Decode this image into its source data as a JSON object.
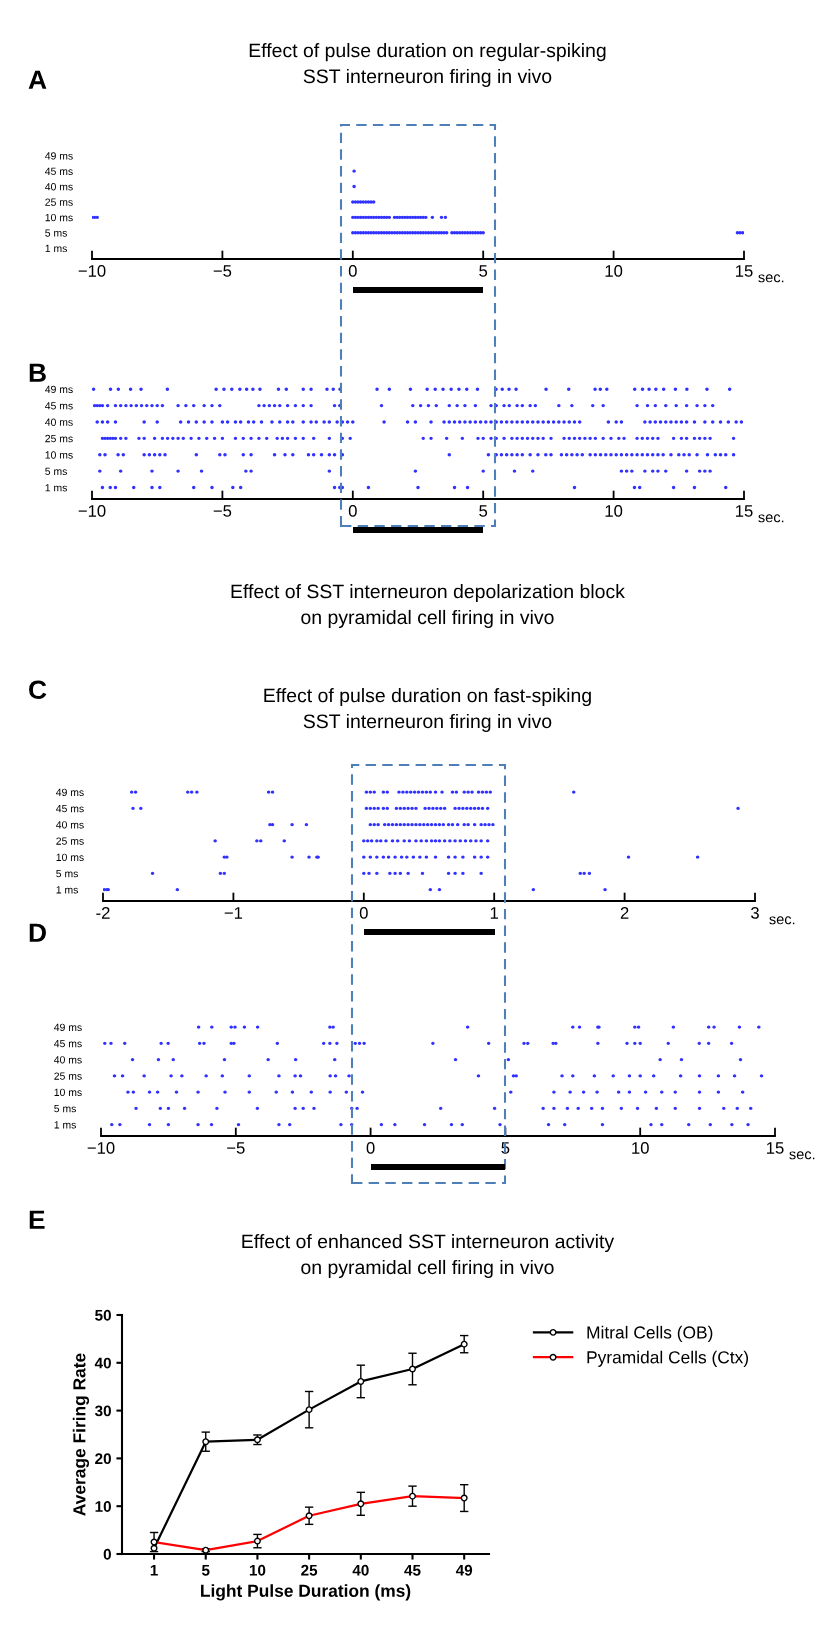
{
  "chart_data": [
    {
      "type": "scatter",
      "orientation": "horizontal",
      "title": "Effect of pulse duration on regular-spiking\nSST interneuron firing in vivo",
      "xlabel": "sec.",
      "annotations": [
        "A"
      ],
      "marker": "circle",
      "xlim": [
        -10,
        15
      ],
      "xticks": [
        {
          "value": -10,
          "label": "−10"
        },
        {
          "value": -5,
          "label": "−5"
        },
        0,
        5,
        10,
        15
      ],
      "categories": [
        "49 ms",
        "45 ms",
        "40 ms",
        "25 ms",
        "10 ms",
        "5 ms",
        "1 ms"
      ],
      "series": [
        {
          "color": "#3030ff",
          "x": [
            "45 ms"
          ],
          "values": [
            0.05
          ]
        },
        {
          "color": "#3030ff",
          "x": [
            "40 ms"
          ],
          "values": [
            0.05
          ]
        },
        {
          "color": "#3030ff",
          "x": [
            "25 ms",
            "25 ms",
            "25 ms",
            "25 ms",
            "25 ms",
            "25 ms",
            "25 ms",
            "25 ms",
            "25 ms"
          ],
          "values": [
            0,
            0.1,
            0.2,
            0.3,
            0.4,
            0.5,
            0.6,
            0.7,
            0.8
          ]
        },
        {
          "color": "#3030ff",
          "x": [
            "10 ms",
            "10 ms",
            "10 ms",
            "10 ms",
            "10 ms",
            "10 ms",
            "10 ms",
            "10 ms",
            "10 ms",
            "10 ms",
            "10 ms",
            "10 ms",
            "10 ms",
            "10 ms",
            "10 ms",
            "10 ms",
            "10 ms",
            "10 ms",
            "10 ms",
            "10 ms",
            "10 ms",
            "10 ms",
            "10 ms",
            "10 ms",
            "10 ms",
            "10 ms",
            "10 ms",
            "10 ms",
            "10 ms",
            "10 ms",
            "10 ms",
            "10 ms",
            "10 ms",
            "10 ms"
          ],
          "values": [
            -10,
            -9.9,
            -9.8,
            0,
            0.1,
            0.2,
            0.3,
            0.4,
            0.5,
            0.6,
            0.7,
            0.8,
            0.9,
            1.0,
            1.1,
            1.2,
            1.3,
            1.4,
            1.6,
            1.7,
            1.8,
            1.9,
            2.0,
            2.1,
            2.2,
            2.3,
            2.4,
            2.5,
            2.6,
            2.7,
            2.8,
            3.05,
            3.4,
            3.55
          ]
        },
        {
          "color": "#3030ff",
          "x": [
            "5 ms",
            "5 ms",
            "5 ms",
            "5 ms",
            "5 ms",
            "5 ms",
            "5 ms",
            "5 ms",
            "5 ms",
            "5 ms",
            "5 ms",
            "5 ms",
            "5 ms",
            "5 ms",
            "5 ms",
            "5 ms",
            "5 ms",
            "5 ms",
            "5 ms",
            "5 ms",
            "5 ms",
            "5 ms",
            "5 ms",
            "5 ms",
            "5 ms",
            "5 ms",
            "5 ms",
            "5 ms",
            "5 ms",
            "5 ms",
            "5 ms",
            "5 ms",
            "5 ms",
            "5 ms",
            "5 ms",
            "5 ms",
            "5 ms",
            "5 ms",
            "5 ms",
            "5 ms",
            "5 ms",
            "5 ms",
            "5 ms",
            "5 ms",
            "5 ms",
            "5 ms",
            "5 ms",
            "5 ms",
            "5 ms",
            "5 ms",
            "5 ms",
            "5 ms",
            "5 ms"
          ],
          "values": [
            0,
            0.1,
            0.2,
            0.3,
            0.4,
            0.5,
            0.6,
            0.7,
            0.8,
            0.9,
            1.0,
            1.1,
            1.2,
            1.3,
            1.4,
            1.5,
            1.6,
            1.7,
            1.8,
            1.9,
            2.0,
            2.1,
            2.2,
            2.3,
            2.4,
            2.5,
            2.6,
            2.7,
            2.8,
            2.9,
            3.0,
            3.1,
            3.2,
            3.3,
            3.4,
            3.5,
            3.6,
            3.8,
            3.9,
            4.0,
            4.1,
            4.2,
            4.3,
            4.4,
            4.5,
            4.6,
            4.7,
            4.8,
            4.9,
            5.0,
            14.75,
            14.85,
            14.95
          ]
        }
      ]
    },
    {
      "type": "scatter",
      "orientation": "horizontal",
      "xlabel": "sec.",
      "annotations": [
        "B",
        "Effect of SST interneuron depolarization block\non pyramidal cell firing in vivo"
      ],
      "marker": "circle",
      "xlim": [
        -10,
        15
      ],
      "xticks": [
        {
          "value": -10,
          "label": "−10"
        },
        {
          "value": -5,
          "label": "−5"
        },
        0,
        5,
        10,
        15
      ],
      "categories": [
        "49 ms",
        "45 ms",
        "40 ms",
        "25 ms",
        "10 ms",
        "5 ms",
        "1 ms"
      ],
      "series": [
        {
          "color": "#3030ff",
          "x": [
            "49 ms",
            "49 ms",
            "49 ms",
            "49 ms",
            "49 ms",
            "49 ms",
            "49 ms",
            "49 ms",
            "49 ms",
            "49 ms",
            "49 ms",
            "49 ms",
            "49 ms",
            "49 ms",
            "49 ms",
            "49 ms",
            "49 ms",
            "49 ms",
            "49 ms",
            "49 ms",
            "49 ms",
            "49 ms",
            "49 ms",
            "49 ms",
            "49 ms",
            "49 ms",
            "49 ms",
            "49 ms",
            "49 ms",
            "49 ms",
            "49 ms",
            "49 ms",
            "49 ms",
            "49 ms",
            "49 ms",
            "49 ms",
            "49 ms",
            "49 ms",
            "49 ms",
            "49 ms",
            "49 ms",
            "49 ms",
            "49 ms",
            "49 ms",
            "49 ms",
            "49 ms",
            "49 ms",
            "49 ms"
          ],
          "values": [
            -9.94,
            -9.29,
            -8.99,
            -8.52,
            -8.12,
            -7.11,
            -5.24,
            -4.94,
            -4.64,
            -4.33,
            -4.07,
            -3.83,
            -3.56,
            -2.85,
            -2.55,
            -1.9,
            -1.6,
            -0.99,
            -0.75,
            -0.49,
            0.93,
            1.4,
            2.21,
            2.85,
            3.16,
            3.46,
            3.77,
            4.07,
            4.37,
            4.78,
            5.49,
            5.73,
            5.99,
            6.26,
            7.41,
            8.28,
            9.29,
            9.49,
            9.74,
            10.81,
            11.11,
            11.36,
            11.62,
            11.92,
            12.37,
            12.81,
            13.58,
            14.45
          ]
        },
        {
          "color": "#3030ff",
          "x": [
            "45 ms",
            "45 ms",
            "45 ms",
            "45 ms",
            "45 ms",
            "45 ms",
            "45 ms",
            "45 ms",
            "45 ms",
            "45 ms",
            "45 ms",
            "45 ms",
            "45 ms",
            "45 ms",
            "45 ms",
            "45 ms",
            "45 ms",
            "45 ms",
            "45 ms",
            "45 ms",
            "45 ms",
            "45 ms",
            "45 ms",
            "45 ms",
            "45 ms",
            "45 ms",
            "45 ms",
            "45 ms",
            "45 ms",
            "45 ms",
            "45 ms",
            "45 ms",
            "45 ms",
            "45 ms",
            "45 ms",
            "45 ms",
            "45 ms",
            "45 ms",
            "45 ms",
            "45 ms",
            "45 ms",
            "45 ms",
            "45 ms",
            "45 ms",
            "45 ms",
            "45 ms",
            "45 ms",
            "45 ms",
            "45 ms",
            "45 ms",
            "45 ms",
            "45 ms",
            "45 ms",
            "45 ms",
            "45 ms",
            "45 ms",
            "45 ms",
            "45 ms",
            "45 ms",
            "45 ms",
            "45 ms",
            "45 ms"
          ],
          "values": [
            -9.9,
            -9.8,
            -9.7,
            -9.6,
            -9.4,
            -9.1,
            -8.9,
            -8.7,
            -8.5,
            -8.3,
            -8.1,
            -7.9,
            -7.7,
            -7.5,
            -7.3,
            -6.7,
            -6.4,
            -6.1,
            -5.7,
            -5.4,
            -5.1,
            -3.6,
            -3.4,
            -3.2,
            -3.0,
            -2.8,
            -2.5,
            -2.2,
            -1.9,
            -1.6,
            -0.7,
            -0.5,
            1.1,
            2.3,
            2.6,
            2.9,
            3.2,
            3.7,
            4.0,
            4.3,
            4.7,
            5.3,
            5.5,
            5.8,
            6.0,
            6.3,
            6.5,
            6.8,
            7.0,
            7.9,
            8.4,
            9.2,
            9.6,
            10.9,
            11.3,
            11.6,
            12.0,
            12.4,
            12.8,
            13.2,
            13.5,
            13.8
          ]
        },
        {
          "color": "#3030ff",
          "x": [
            "40 ms",
            "40 ms",
            "40 ms",
            "40 ms",
            "40 ms",
            "40 ms",
            "40 ms",
            "40 ms",
            "40 ms",
            "40 ms",
            "40 ms",
            "40 ms",
            "40 ms",
            "40 ms",
            "40 ms",
            "40 ms",
            "40 ms",
            "40 ms",
            "40 ms",
            "40 ms",
            "40 ms",
            "40 ms",
            "40 ms",
            "40 ms",
            "40 ms",
            "40 ms",
            "40 ms",
            "40 ms",
            "40 ms",
            "40 ms",
            "40 ms",
            "40 ms",
            "40 ms",
            "40 ms",
            "40 ms",
            "40 ms",
            "40 ms",
            "40 ms",
            "40 ms",
            "40 ms",
            "40 ms",
            "40 ms",
            "40 ms",
            "40 ms",
            "40 ms",
            "40 ms",
            "40 ms",
            "40 ms",
            "40 ms",
            "40 ms",
            "40 ms",
            "40 ms",
            "40 ms",
            "40 ms",
            "40 ms",
            "40 ms",
            "40 ms",
            "40 ms",
            "40 ms",
            "40 ms",
            "40 ms",
            "40 ms",
            "40 ms",
            "40 ms",
            "40 ms",
            "40 ms",
            "40 ms",
            "40 ms",
            "40 ms",
            "40 ms",
            "40 ms",
            "40 ms",
            "40 ms",
            "40 ms",
            "40 ms",
            "40 ms",
            "40 ms",
            "40 ms",
            "40 ms",
            "40 ms",
            "40 ms"
          ],
          "values": [
            -9.8,
            -9.6,
            -9.4,
            -9.1,
            -8.0,
            -7.5,
            -6.6,
            -6.3,
            -6.0,
            -5.7,
            -5.4,
            -5.0,
            -4.8,
            -4.5,
            -4.3,
            -4.0,
            -3.8,
            -3.5,
            -3.1,
            -2.8,
            -2.5,
            -2.3,
            -1.9,
            -1.6,
            -1.4,
            -1.1,
            -0.9,
            -0.6,
            -0.4,
            -0.2,
            0,
            1.2,
            2.1,
            2.4,
            3.0,
            3.5,
            3.7,
            3.9,
            4.1,
            4.3,
            4.5,
            4.7,
            4.9,
            5.1,
            5.3,
            5.5,
            5.7,
            5.9,
            6.1,
            6.3,
            6.5,
            6.7,
            6.9,
            7.1,
            7.3,
            7.5,
            7.7,
            7.9,
            8.1,
            8.3,
            8.5,
            8.7,
            9.8,
            10.1,
            10.3,
            11.2,
            11.4,
            11.6,
            11.8,
            12.0,
            12.2,
            12.4,
            12.6,
            12.8,
            13.1,
            13.5,
            13.8,
            14.1,
            14.4,
            14.7,
            14.9
          ]
        },
        {
          "color": "#3030ff",
          "x": [
            "25 ms",
            "25 ms",
            "25 ms",
            "25 ms",
            "25 ms",
            "25 ms",
            "25 ms",
            "25 ms",
            "25 ms",
            "25 ms",
            "25 ms",
            "25 ms",
            "25 ms",
            "25 ms",
            "25 ms",
            "25 ms",
            "25 ms",
            "25 ms",
            "25 ms",
            "25 ms",
            "25 ms",
            "25 ms",
            "25 ms",
            "25 ms",
            "25 ms",
            "25 ms",
            "25 ms",
            "25 ms",
            "25 ms",
            "25 ms",
            "25 ms",
            "25 ms",
            "25 ms",
            "25 ms",
            "25 ms",
            "25 ms",
            "25 ms",
            "25 ms",
            "25 ms",
            "25 ms",
            "25 ms",
            "25 ms",
            "25 ms",
            "25 ms",
            "25 ms",
            "25 ms",
            "25 ms",
            "25 ms",
            "25 ms",
            "25 ms",
            "25 ms",
            "25 ms",
            "25 ms",
            "25 ms",
            "25 ms",
            "25 ms",
            "25 ms",
            "25 ms",
            "25 ms",
            "25 ms",
            "25 ms",
            "25 ms",
            "25 ms",
            "25 ms",
            "25 ms",
            "25 ms",
            "25 ms",
            "25 ms",
            "25 ms",
            "25 ms",
            "25 ms",
            "25 ms",
            "25 ms",
            "25 ms",
            "25 ms",
            "25 ms"
          ],
          "values": [
            -9.6,
            -9.5,
            -9.4,
            -9.3,
            -9.2,
            -9.1,
            -8.9,
            -8.7,
            -8.2,
            -8.0,
            -7.6,
            -7.3,
            -7.1,
            -6.9,
            -6.7,
            -6.5,
            -6.2,
            -5.9,
            -5.6,
            -5.3,
            -5.0,
            -4.5,
            -4.2,
            -3.9,
            -3.6,
            -3.3,
            -2.9,
            -2.7,
            -2.5,
            -2.2,
            -1.9,
            -1.5,
            -0.9,
            -0.4,
            -0.1,
            2.7,
            3.0,
            3.6,
            4.2,
            4.8,
            5.0,
            5.3,
            5.5,
            5.8,
            6.1,
            6.3,
            6.5,
            6.7,
            6.9,
            7.1,
            7.3,
            7.6,
            8.1,
            8.3,
            8.5,
            8.7,
            8.9,
            9.1,
            9.3,
            9.6,
            9.9,
            10.2,
            10.4,
            10.9,
            11.1,
            11.3,
            11.5,
            11.7,
            12.3,
            12.6,
            12.8,
            13.1,
            13.3,
            13.5,
            13.7,
            14.6
          ]
        },
        {
          "color": "#3030ff",
          "x": [
            "10 ms",
            "10 ms",
            "10 ms",
            "10 ms",
            "10 ms",
            "10 ms",
            "10 ms",
            "10 ms",
            "10 ms",
            "10 ms",
            "10 ms",
            "10 ms",
            "10 ms",
            "10 ms",
            "10 ms",
            "10 ms",
            "10 ms",
            "10 ms",
            "10 ms",
            "10 ms",
            "10 ms",
            "10 ms",
            "10 ms",
            "10 ms",
            "10 ms",
            "10 ms",
            "10 ms",
            "10 ms",
            "10 ms",
            "10 ms",
            "10 ms",
            "10 ms",
            "10 ms",
            "10 ms",
            "10 ms",
            "10 ms",
            "10 ms",
            "10 ms",
            "10 ms",
            "10 ms",
            "10 ms",
            "10 ms",
            "10 ms",
            "10 ms",
            "10 ms",
            "10 ms",
            "10 ms",
            "10 ms",
            "10 ms",
            "10 ms",
            "10 ms",
            "10 ms",
            "10 ms",
            "10 ms",
            "10 ms",
            "10 ms",
            "10 ms",
            "10 ms",
            "10 ms",
            "10 ms",
            "10 ms",
            "10 ms",
            "10 ms",
            "10 ms",
            "10 ms"
          ],
          "values": [
            -9.7,
            -9.5,
            -9.0,
            -8.8,
            -8.0,
            -7.8,
            -7.6,
            -7.4,
            -7.2,
            -6.0,
            -5.1,
            -4.9,
            -4.2,
            -3.9,
            -3.0,
            -2.6,
            -2.3,
            -1.7,
            -1.5,
            -1.2,
            -0.9,
            -0.7,
            -0.4,
            3.7,
            5.2,
            5.5,
            5.7,
            5.9,
            6.1,
            6.3,
            6.5,
            6.8,
            7.1,
            7.4,
            7.6,
            8.0,
            8.2,
            8.4,
            8.6,
            8.8,
            9.1,
            9.3,
            9.5,
            9.7,
            9.9,
            10.1,
            10.3,
            10.5,
            10.7,
            10.9,
            11.1,
            11.3,
            11.5,
            11.7,
            11.9,
            12.2,
            12.5,
            12.7,
            12.9,
            13.2,
            13.6,
            13.9,
            14.1,
            14.3,
            14.6
          ]
        },
        {
          "color": "#3030ff",
          "x": [
            "5 ms",
            "5 ms",
            "5 ms",
            "5 ms",
            "5 ms",
            "5 ms",
            "5 ms",
            "5 ms",
            "5 ms",
            "5 ms",
            "5 ms",
            "5 ms",
            "5 ms",
            "5 ms",
            "5 ms",
            "5 ms",
            "5 ms",
            "5 ms",
            "5 ms",
            "5 ms",
            "5 ms",
            "5 ms",
            "5 ms"
          ],
          "values": [
            -9.7,
            -8.9,
            -7.7,
            -6.7,
            -5.8,
            -4.1,
            -3.9,
            -0.9,
            2.4,
            5.0,
            6.2,
            6.9,
            10.3,
            10.5,
            10.7,
            11.2,
            11.5,
            11.7,
            12.0,
            12.8,
            13.3,
            13.5,
            13.7
          ]
        },
        {
          "color": "#3030ff",
          "x": [
            "1 ms",
            "1 ms",
            "1 ms",
            "1 ms",
            "1 ms",
            "1 ms",
            "1 ms",
            "1 ms",
            "1 ms",
            "1 ms",
            "1 ms",
            "1 ms",
            "1 ms",
            "1 ms",
            "1 ms",
            "1 ms",
            "1 ms",
            "1 ms",
            "1 ms",
            "1 ms",
            "1 ms",
            "1 ms",
            "1 ms"
          ],
          "values": [
            -9.6,
            -9.3,
            -9.1,
            -8.4,
            -7.7,
            -7.4,
            -6.1,
            -5.4,
            -4.6,
            -4.3,
            -0.7,
            -0.5,
            -0.4,
            0.6,
            2.5,
            3.9,
            4.4,
            8.5,
            10.8,
            11.0,
            12.3,
            13.1,
            14.3
          ]
        }
      ]
    },
    {
      "type": "scatter",
      "orientation": "horizontal",
      "title": "Effect of pulse duration on fast-spiking\nSST interneuron firing in vivo",
      "xlabel": "sec.",
      "annotations": [
        "C"
      ],
      "marker": "circle",
      "xlim": [
        -2,
        3
      ],
      "xticks": [
        {
          "value": -2,
          "label": "-2"
        },
        {
          "value": -1,
          "label": "−1"
        },
        0,
        1,
        2,
        3
      ],
      "categories": [
        "49 ms",
        "45 ms",
        "40 ms",
        "25 ms",
        "10 ms",
        "5 ms",
        "1 ms"
      ],
      "series": [
        {
          "color": "#3030ff",
          "x": [
            "49 ms",
            "49 ms",
            "49 ms",
            "49 ms",
            "49 ms",
            "49 ms",
            "49 ms",
            "49 ms",
            "49 ms",
            "49 ms",
            "49 ms",
            "49 ms",
            "49 ms",
            "49 ms",
            "49 ms",
            "49 ms",
            "49 ms",
            "49 ms",
            "49 ms",
            "49 ms",
            "49 ms",
            "49 ms",
            "49 ms",
            "49 ms",
            "49 ms",
            "49 ms",
            "49 ms",
            "49 ms",
            "49 ms",
            "49 ms",
            "49 ms",
            "49 ms",
            "49 ms"
          ],
          "values": [
            -1.78,
            -1.75,
            -1.35,
            -1.32,
            -1.28,
            -0.73,
            -0.7,
            0.02,
            0.05,
            0.08,
            0.15,
            0.18,
            0.27,
            0.3,
            0.33,
            0.36,
            0.39,
            0.42,
            0.45,
            0.48,
            0.51,
            0.55,
            0.6,
            0.68,
            0.71,
            0.77,
            0.8,
            0.83,
            0.88,
            0.91,
            0.94,
            0.97,
            1.61
          ]
        },
        {
          "color": "#3030ff",
          "x": [
            "45 ms",
            "45 ms",
            "45 ms",
            "45 ms",
            "45 ms",
            "45 ms",
            "45 ms",
            "45 ms",
            "45 ms",
            "45 ms",
            "45 ms",
            "45 ms",
            "45 ms",
            "45 ms",
            "45 ms",
            "45 ms",
            "45 ms",
            "45 ms",
            "45 ms",
            "45 ms",
            "45 ms",
            "45 ms",
            "45 ms",
            "45 ms",
            "45 ms",
            "45 ms",
            "45 ms",
            "45 ms",
            "45 ms",
            "45 ms"
          ],
          "values": [
            -1.77,
            -1.71,
            0.02,
            0.05,
            0.08,
            0.11,
            0.15,
            0.18,
            0.25,
            0.28,
            0.31,
            0.34,
            0.37,
            0.4,
            0.47,
            0.5,
            0.53,
            0.56,
            0.59,
            0.62,
            0.7,
            0.73,
            0.76,
            0.79,
            0.82,
            0.85,
            0.88,
            0.91,
            0.95,
            2.87
          ]
        },
        {
          "color": "#3030ff",
          "x": [
            "40 ms",
            "40 ms",
            "40 ms",
            "40 ms",
            "40 ms",
            "40 ms",
            "40 ms",
            "40 ms",
            "40 ms",
            "40 ms",
            "40 ms",
            "40 ms",
            "40 ms",
            "40 ms",
            "40 ms",
            "40 ms",
            "40 ms",
            "40 ms",
            "40 ms",
            "40 ms",
            "40 ms",
            "40 ms",
            "40 ms",
            "40 ms",
            "40 ms",
            "40 ms",
            "40 ms",
            "40 ms",
            "40 ms",
            "40 ms",
            "40 ms",
            "40 ms",
            "40 ms"
          ],
          "values": [
            -0.72,
            -0.7,
            -0.55,
            -0.44,
            0.05,
            0.08,
            0.11,
            0.16,
            0.19,
            0.22,
            0.25,
            0.28,
            0.31,
            0.34,
            0.37,
            0.4,
            0.43,
            0.46,
            0.49,
            0.52,
            0.55,
            0.58,
            0.61,
            0.65,
            0.68,
            0.72,
            0.77,
            0.8,
            0.85,
            0.9,
            0.93,
            0.96,
            0.99
          ]
        },
        {
          "color": "#3030ff",
          "x": [
            "25 ms",
            "25 ms",
            "25 ms",
            "25 ms",
            "25 ms",
            "25 ms",
            "25 ms",
            "25 ms",
            "25 ms",
            "25 ms",
            "25 ms",
            "25 ms",
            "25 ms",
            "25 ms",
            "25 ms",
            "25 ms",
            "25 ms",
            "25 ms",
            "25 ms",
            "25 ms",
            "25 ms",
            "25 ms",
            "25 ms",
            "25 ms",
            "25 ms",
            "25 ms",
            "25 ms",
            "25 ms",
            "25 ms"
          ],
          "values": [
            -1.14,
            -0.82,
            -0.79,
            -0.61,
            0.0,
            0.03,
            0.06,
            0.1,
            0.13,
            0.17,
            0.22,
            0.26,
            0.31,
            0.35,
            0.4,
            0.44,
            0.48,
            0.52,
            0.55,
            0.58,
            0.62,
            0.66,
            0.7,
            0.74,
            0.78,
            0.82,
            0.86,
            0.9,
            0.95
          ]
        },
        {
          "color": "#3030ff",
          "x": [
            "10 ms",
            "10 ms",
            "10 ms",
            "10 ms",
            "10 ms",
            "10 ms",
            "10 ms",
            "10 ms",
            "10 ms",
            "10 ms",
            "10 ms",
            "10 ms",
            "10 ms",
            "10 ms",
            "10 ms",
            "10 ms",
            "10 ms",
            "10 ms",
            "10 ms",
            "10 ms",
            "10 ms",
            "10 ms",
            "10 ms",
            "10 ms",
            "10 ms",
            "10 ms"
          ],
          "values": [
            -1.07,
            -1.05,
            -0.55,
            -0.42,
            -0.36,
            -0.35,
            0.0,
            0.05,
            0.1,
            0.15,
            0.19,
            0.24,
            0.29,
            0.33,
            0.38,
            0.43,
            0.48,
            0.55,
            0.65,
            0.7,
            0.76,
            0.85,
            0.9,
            0.95,
            2.03,
            2.56
          ]
        },
        {
          "color": "#3030ff",
          "x": [
            "5 ms",
            "5 ms",
            "5 ms",
            "5 ms",
            "5 ms",
            "5 ms",
            "5 ms",
            "5 ms",
            "5 ms",
            "5 ms",
            "5 ms",
            "5 ms",
            "5 ms",
            "5 ms",
            "5 ms",
            "5 ms",
            "5 ms",
            "5 ms"
          ],
          "values": [
            -1.62,
            -1.1,
            -1.07,
            0.0,
            0.04,
            0.1,
            0.2,
            0.24,
            0.28,
            0.34,
            0.45,
            0.65,
            0.7,
            0.76,
            0.9,
            1.66,
            1.69,
            1.73
          ]
        },
        {
          "color": "#3030ff",
          "x": [
            "1 ms",
            "1 ms",
            "1 ms",
            "1 ms",
            "1 ms",
            "1 ms",
            "1 ms",
            "1 ms"
          ],
          "values": [
            -1.99,
            -1.97,
            -1.96,
            -1.43,
            0.51,
            0.58,
            1.3,
            1.85
          ]
        }
      ]
    },
    {
      "type": "scatter",
      "orientation": "horizontal",
      "xlabel": "sec.",
      "annotations": [
        "D"
      ],
      "marker": "circle",
      "xlim": [
        -10,
        15
      ],
      "xticks": [
        {
          "value": -10,
          "label": "−10"
        },
        {
          "value": -5,
          "label": "−5"
        },
        0,
        5,
        10,
        15
      ],
      "categories": [
        "49 ms",
        "45 ms",
        "40 ms",
        "25 ms",
        "10 ms",
        "5 ms",
        "1 ms"
      ],
      "series": [
        {
          "color": "#3030ff",
          "x": [
            "49 ms",
            "49 ms",
            "49 ms",
            "49 ms",
            "49 ms",
            "49 ms",
            "49 ms",
            "49 ms",
            "49 ms",
            "49 ms",
            "49 ms",
            "49 ms",
            "49 ms",
            "49 ms",
            "49 ms",
            "49 ms",
            "49 ms",
            "49 ms",
            "49 ms",
            "49 ms"
          ],
          "values": [
            -6.38,
            -5.89,
            -5.17,
            -5.03,
            -4.68,
            -4.19,
            -1.51,
            -1.39,
            3.6,
            7.5,
            7.75,
            8.43,
            8.47,
            9.8,
            9.94,
            11.23,
            12.54,
            12.74,
            13.68,
            14.4
          ]
        },
        {
          "color": "#3030ff",
          "x": [
            "45 ms",
            "45 ms",
            "45 ms",
            "45 ms",
            "45 ms",
            "45 ms",
            "45 ms",
            "45 ms",
            "45 ms",
            "45 ms",
            "45 ms",
            "45 ms",
            "45 ms",
            "45 ms",
            "45 ms",
            "45 ms",
            "45 ms",
            "45 ms",
            "45 ms",
            "45 ms",
            "45 ms",
            "45 ms",
            "45 ms",
            "45 ms",
            "45 ms",
            "45 ms",
            "45 ms",
            "45 ms",
            "45 ms",
            "45 ms"
          ],
          "values": [
            -9.86,
            -9.63,
            -9.12,
            -7.77,
            -7.51,
            -6.34,
            -6.18,
            -5.17,
            -5.07,
            -3.46,
            -1.74,
            -1.51,
            -1.25,
            -0.57,
            -0.41,
            -0.24,
            2.31,
            4.38,
            5.69,
            5.83,
            6.77,
            6.87,
            8.43,
            9.51,
            9.8,
            10.0,
            11.04,
            12.19,
            12.54,
            13.39
          ]
        },
        {
          "color": "#3030ff",
          "x": [
            "40 ms",
            "40 ms",
            "40 ms",
            "40 ms",
            "40 ms",
            "40 ms",
            "40 ms",
            "40 ms",
            "40 ms",
            "40 ms",
            "40 ms",
            "40 ms"
          ],
          "values": [
            -8.83,
            -7.87,
            -7.32,
            -5.42,
            -3.8,
            -2.78,
            -1.33,
            3.15,
            5.11,
            10.74,
            11.53,
            13.72
          ]
        },
        {
          "color": "#3030ff",
          "x": [
            "25 ms",
            "25 ms",
            "25 ms",
            "25 ms",
            "25 ms",
            "25 ms",
            "25 ms",
            "25 ms",
            "25 ms",
            "25 ms",
            "25 ms",
            "25 ms",
            "25 ms",
            "25 ms",
            "25 ms",
            "25 ms",
            "25 ms",
            "25 ms",
            "25 ms",
            "25 ms",
            "25 ms",
            "25 ms",
            "25 ms",
            "25 ms",
            "25 ms",
            "25 ms",
            "25 ms",
            "25 ms",
            "25 ms"
          ],
          "values": [
            -9.5,
            -9.2,
            -8.4,
            -7.4,
            -7.0,
            -6.1,
            -5.5,
            -4.5,
            -3.4,
            -2.8,
            -2.6,
            -1.5,
            -1.3,
            -0.8,
            4.0,
            5.3,
            5.4,
            7.1,
            7.5,
            8.3,
            9.0,
            9.6,
            10.0,
            10.5,
            11.5,
            12.2,
            12.9,
            13.5,
            14.5
          ]
        },
        {
          "color": "#3030ff",
          "x": [
            "10 ms",
            "10 ms",
            "10 ms",
            "10 ms",
            "10 ms",
            "10 ms",
            "10 ms",
            "10 ms",
            "10 ms",
            "10 ms",
            "10 ms",
            "10 ms",
            "10 ms",
            "10 ms",
            "10 ms",
            "10 ms",
            "10 ms",
            "10 ms",
            "10 ms",
            "10 ms",
            "10 ms",
            "10 ms",
            "10 ms",
            "10 ms",
            "10 ms",
            "10 ms",
            "10 ms"
          ],
          "values": [
            -9.0,
            -8.8,
            -8.2,
            -7.9,
            -7.2,
            -6.4,
            -5.4,
            -4.5,
            -3.5,
            -2.9,
            -2.2,
            -1.5,
            -0.9,
            -0.3,
            5.2,
            6.8,
            7.4,
            7.9,
            8.4,
            9.2,
            9.6,
            10.2,
            10.8,
            11.3,
            12.2,
            12.9,
            13.8
          ]
        },
        {
          "color": "#3030ff",
          "x": [
            "5 ms",
            "5 ms",
            "5 ms",
            "5 ms",
            "5 ms",
            "5 ms",
            "5 ms",
            "5 ms",
            "5 ms",
            "5 ms",
            "5 ms",
            "5 ms",
            "5 ms",
            "5 ms",
            "5 ms",
            "5 ms",
            "5 ms",
            "5 ms",
            "5 ms",
            "5 ms",
            "5 ms",
            "5 ms",
            "5 ms",
            "5 ms",
            "5 ms",
            "5 ms",
            "5 ms"
          ],
          "values": [
            -8.7,
            -7.8,
            -7.5,
            -6.9,
            -5.7,
            -4.2,
            -2.8,
            -2.5,
            -2.1,
            -0.7,
            -0.5,
            2.6,
            4.6,
            6.4,
            6.8,
            7.3,
            7.7,
            8.2,
            8.6,
            9.3,
            9.9,
            10.6,
            11.3,
            12.2,
            13.1,
            13.6,
            14.1
          ]
        },
        {
          "color": "#3030ff",
          "x": [
            "1 ms",
            "1 ms",
            "1 ms",
            "1 ms",
            "1 ms",
            "1 ms",
            "1 ms",
            "1 ms",
            "1 ms",
            "1 ms",
            "1 ms",
            "1 ms",
            "1 ms",
            "1 ms",
            "1 ms",
            "1 ms",
            "1 ms",
            "1 ms",
            "1 ms",
            "1 ms",
            "1 ms",
            "1 ms",
            "1 ms",
            "1 ms",
            "1 ms",
            "1 ms"
          ],
          "values": [
            -9.6,
            -9.3,
            -8.2,
            -7.5,
            -6.4,
            -5.9,
            -4.9,
            -3.4,
            -3.0,
            -1.1,
            -0.7,
            0.4,
            0.9,
            2.0,
            3.0,
            3.4,
            4.8,
            6.6,
            7.2,
            8.6,
            10.4,
            10.8,
            11.8,
            12.6,
            13.4,
            14.0
          ]
        }
      ]
    },
    {
      "type": "line",
      "title": "Effect of enhanced SST interneuron activity\non pyramidal cell firing in vivo",
      "xlabel": "Light Pulse Duration (ms)",
      "ylabel": "Average Firing Rate",
      "annotations": [
        "E"
      ],
      "marker": "circle",
      "legend": "right",
      "categories": [
        "1",
        "5",
        "10",
        "25",
        "40",
        "45",
        "49"
      ],
      "ylim": [
        0,
        50
      ],
      "yticks": [
        0,
        10,
        20,
        30,
        40,
        50
      ],
      "series": [
        {
          "name": "Mitral Cells (OB)",
          "color": "#000000",
          "values": [
            1.2,
            23.5,
            23.9,
            30.2,
            36.1,
            38.7,
            43.9
          ],
          "errors": [
            null,
            2,
            1,
            3.8,
            3.4,
            3.3,
            1.8
          ]
        },
        {
          "name": "Pyramidal Cells (Ctx)",
          "color": "#ff0000",
          "values": [
            2.5,
            0.8,
            2.7,
            8,
            10.5,
            12.1,
            11.7
          ],
          "errors": [
            2,
            0.3,
            1.4,
            1.8,
            2.4,
            2.1,
            2.8
          ]
        }
      ]
    }
  ]
}
